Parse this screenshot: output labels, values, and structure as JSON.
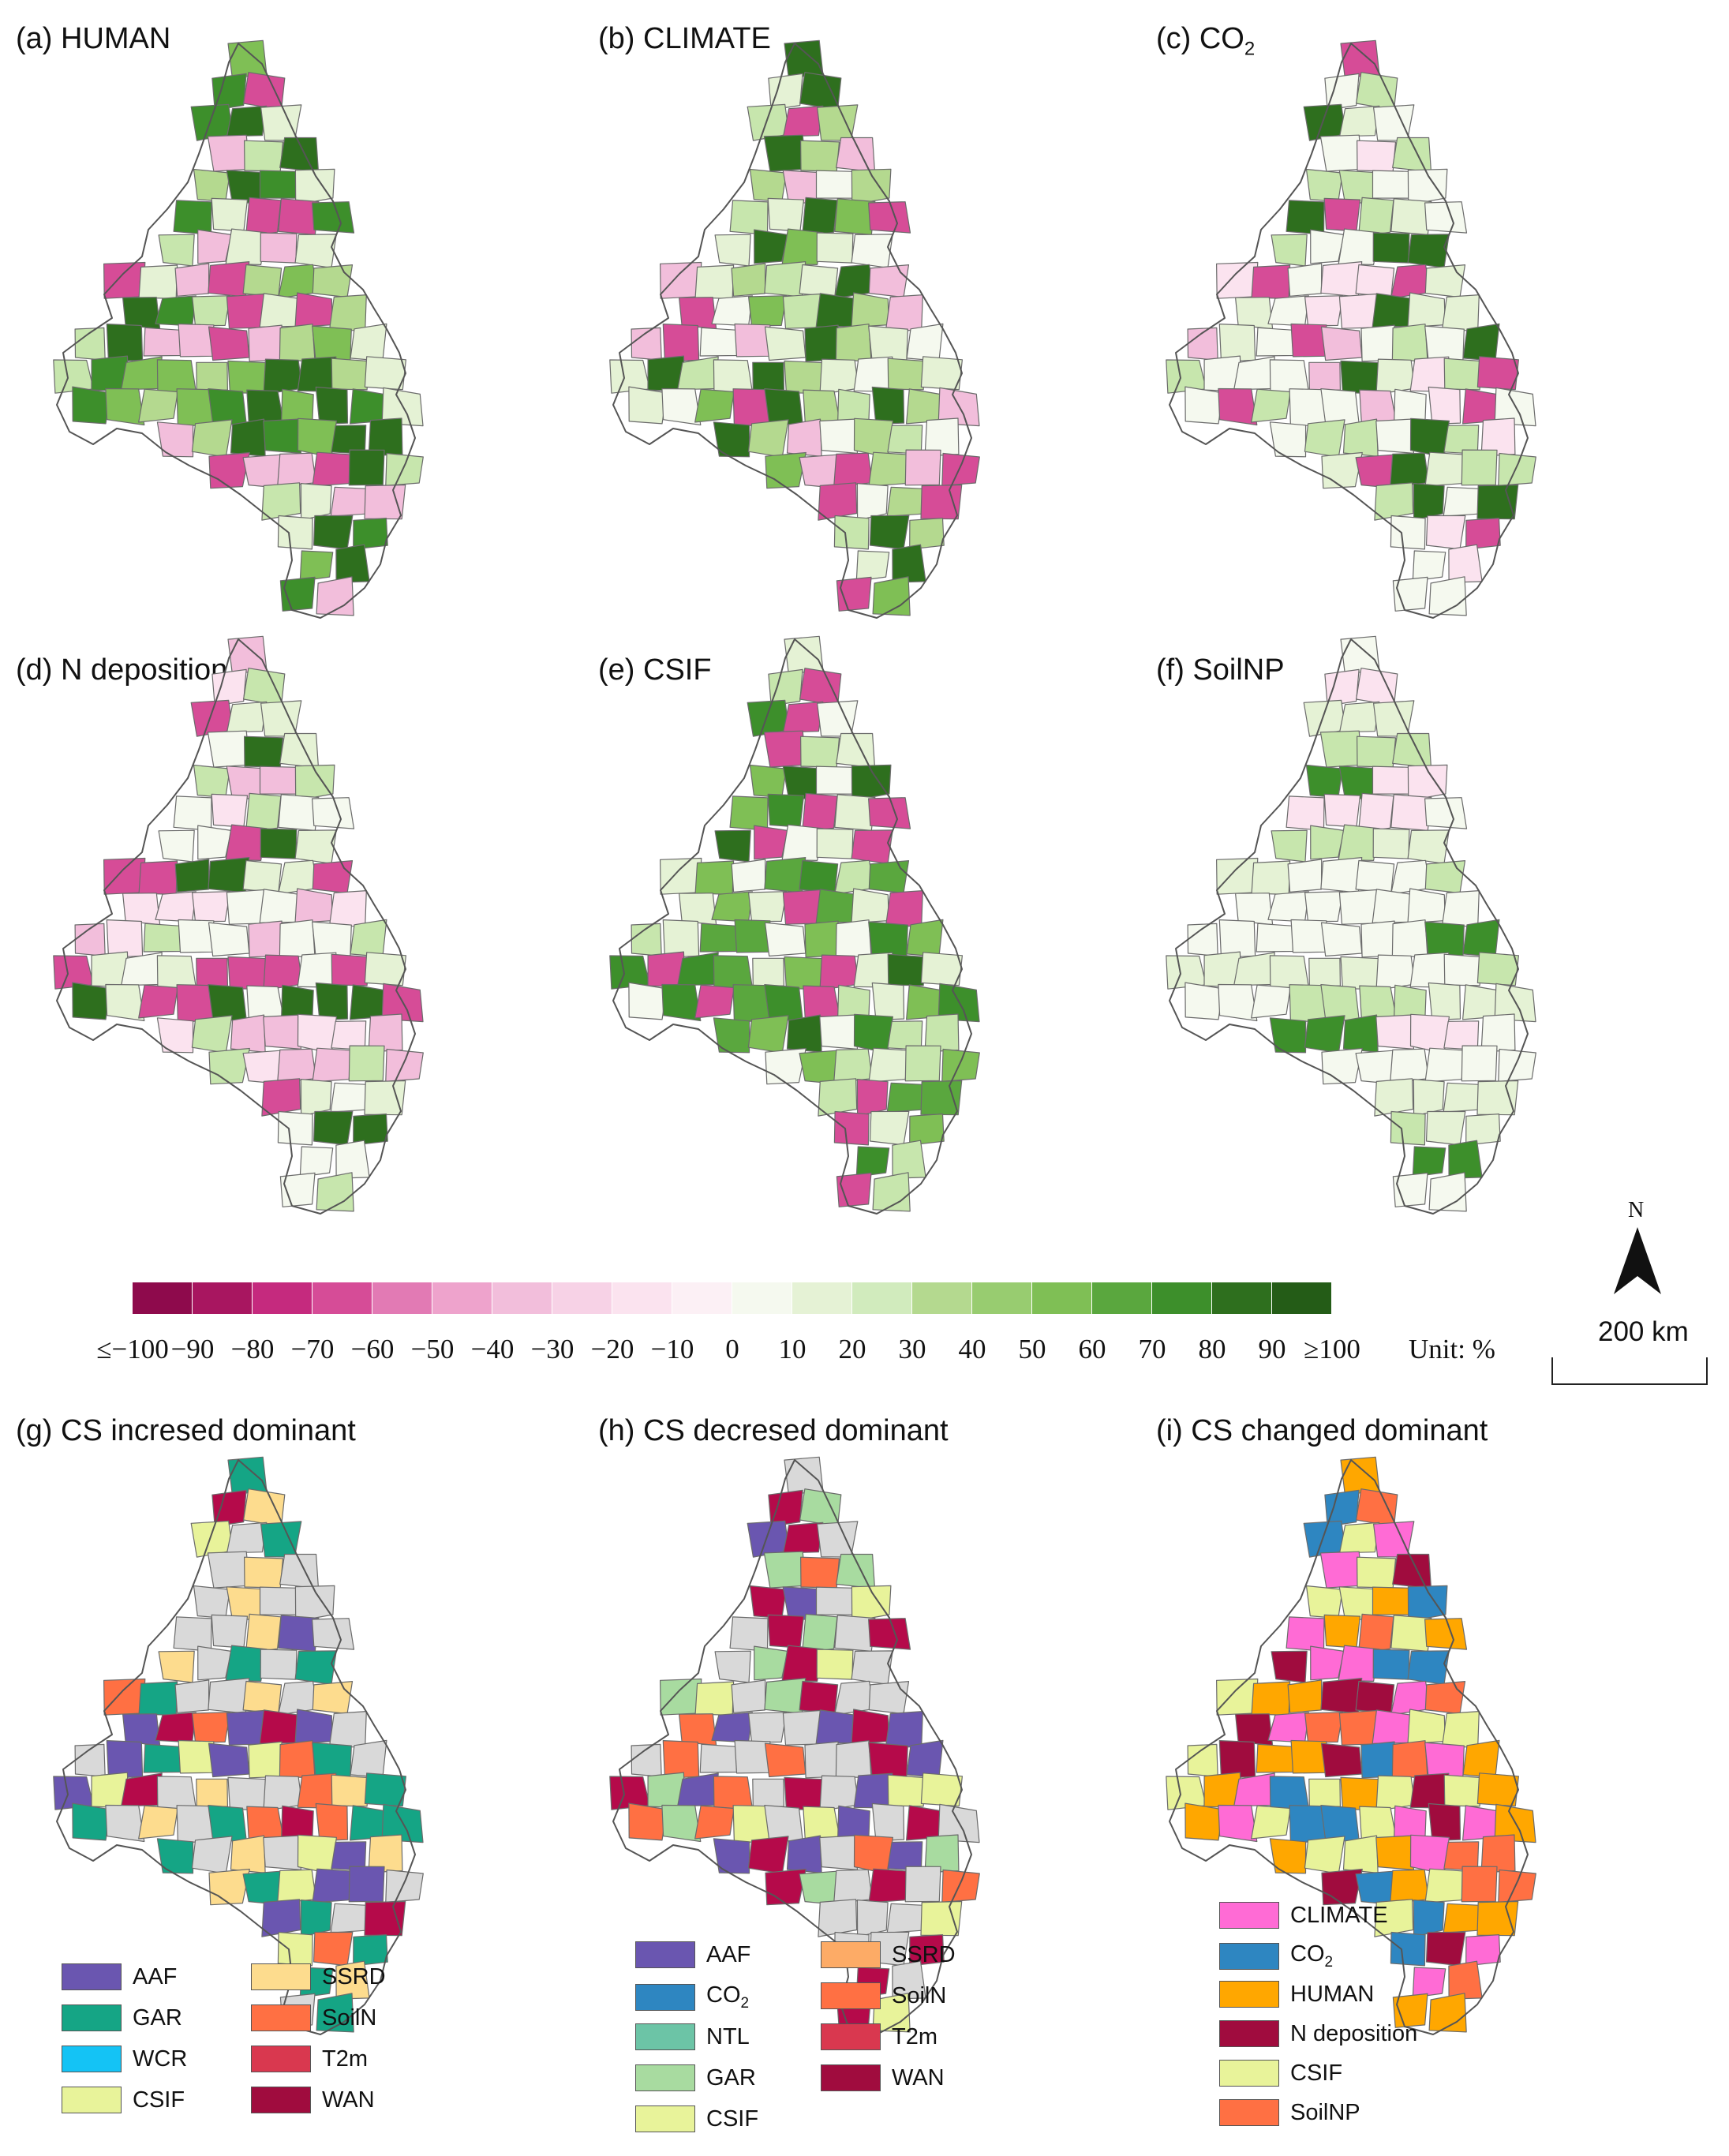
{
  "panels": [
    {
      "id": "a",
      "title": "(a) HUMAN",
      "palette": [
        "#3d8f2b",
        "#2e6f1e",
        "#7fbf55",
        "#b4d98f",
        "#e5f2d5",
        "#d64c97",
        "#f2bedb",
        "#c7e6ad"
      ]
    },
    {
      "id": "b",
      "title": "(b) CLIMATE",
      "palette": [
        "#f5f9ef",
        "#e5f2d5",
        "#c7e6ad",
        "#7fbf55",
        "#2e6f1e",
        "#d64c97",
        "#f2bedb",
        "#b4d98f"
      ]
    },
    {
      "id": "c",
      "title": "(c) CO",
      "title_sub": "2",
      "palette": [
        "#f5f9ef",
        "#e5f2d5",
        "#f5f9ef",
        "#c7e6ad",
        "#2e6f1e",
        "#f2bedb",
        "#d64c97",
        "#fbe3ef"
      ]
    },
    {
      "id": "d",
      "title": "(d) N deposition",
      "palette": [
        "#f5f9ef",
        "#e5f2d5",
        "#fbe3ef",
        "#2e6f1e",
        "#f2bedb",
        "#d64c97",
        "#c7e6ad",
        "#f5f9ef"
      ]
    },
    {
      "id": "e",
      "title": "(e) CSIF",
      "palette": [
        "#5aa73e",
        "#2e6f1e",
        "#7fbf55",
        "#c7e6ad",
        "#f5f9ef",
        "#d64c97",
        "#e5f2d5",
        "#3d8f2b"
      ]
    },
    {
      "id": "f",
      "title": "(f) SoilNP",
      "palette": [
        "#f5f9ef",
        "#e5f2d5",
        "#f5f9ef",
        "#c7e6ad",
        "#fbe3ef",
        "#f5f9ef",
        "#3d8f2b",
        "#e5f2d5"
      ]
    },
    {
      "id": "g",
      "title": "(g) CS incresed dominant",
      "palette": [
        "#d9d9d9",
        "#d9d9d9",
        "#e8f39a",
        "#6a56b0",
        "#b50a4a",
        "#ff7043",
        "#15a585",
        "#fddc8e"
      ]
    },
    {
      "id": "h",
      "title": "(h) CS decresed dominant",
      "palette": [
        "#d9d9d9",
        "#d9d9d9",
        "#d9d9d9",
        "#e8f39a",
        "#6a56b0",
        "#b50a4a",
        "#a8dba0",
        "#ff7043"
      ]
    },
    {
      "id": "i",
      "title": "(i) CS changed dominant",
      "palette": [
        "#ffa700",
        "#e8f39a",
        "#ffa700",
        "#a00c3e",
        "#ff6bd5",
        "#ff7043",
        "#2e86c1",
        "#e8f39a"
      ]
    }
  ],
  "colorbar": {
    "colors": [
      "#8e0a4c",
      "#a81660",
      "#c52a7e",
      "#d64c97",
      "#e27ab4",
      "#eea3cc",
      "#f2bedb",
      "#f7d2e6",
      "#fbe3ef",
      "#fcf0f5",
      "#f5f9ef",
      "#e5f2d5",
      "#d1ebbd",
      "#b4d98f",
      "#98cc70",
      "#7fbf55",
      "#5aa73e",
      "#3d8f2b",
      "#2e6f1e",
      "#245c17"
    ],
    "ticks": [
      "≤−100",
      "−90",
      "−80",
      "−70",
      "−60",
      "−50",
      "−40",
      "−30",
      "−20",
      "−10",
      "0",
      "10",
      "20",
      "30",
      "40",
      "50",
      "60",
      "70",
      "80",
      "90",
      "≥100"
    ],
    "unit": "Unit: %"
  },
  "north_label": "N",
  "scale_label": "200 km",
  "legend_g": [
    {
      "label": "AAF",
      "color": "#6a56b0"
    },
    {
      "label": "SSRD",
      "color": "#fddc8e"
    },
    {
      "label": "GAR",
      "color": "#15a585"
    },
    {
      "label": "SoilN",
      "color": "#ff7043"
    },
    {
      "label": "WCR",
      "color": "#14c3f5"
    },
    {
      "label": "T2m",
      "color": "#d9384f"
    },
    {
      "label": "CSIF",
      "color": "#e8f39a"
    },
    {
      "label": "WAN",
      "color": "#a00c3e"
    }
  ],
  "legend_h": [
    {
      "label": "AAF",
      "color": "#6a56b0"
    },
    {
      "label": "SSRD",
      "color": "#fdab66"
    },
    {
      "label": "CO",
      "sub": "2",
      "color": "#2e86c1"
    },
    {
      "label": "SoilN",
      "color": "#ff7043"
    },
    {
      "label": "NTL",
      "color": "#6cc4a6"
    },
    {
      "label": "T2m",
      "color": "#d9384f"
    },
    {
      "label": "GAR",
      "color": "#a8dba0"
    },
    {
      "label": "WAN",
      "color": "#a00c3e"
    },
    {
      "label": "CSIF",
      "color": "#e8f39a"
    }
  ],
  "legend_i": [
    {
      "label": "CLIMATE",
      "color": "#ff6bd5"
    },
    {
      "label": "CO",
      "sub": "2",
      "color": "#2e86c1"
    },
    {
      "label": "HUMAN",
      "color": "#ffa700"
    },
    {
      "label": "N deposition",
      "color": "#a00c3e"
    },
    {
      "label": "CSIF",
      "color": "#e8f39a"
    },
    {
      "label": "SoilNP",
      "color": "#ff7043"
    }
  ]
}
